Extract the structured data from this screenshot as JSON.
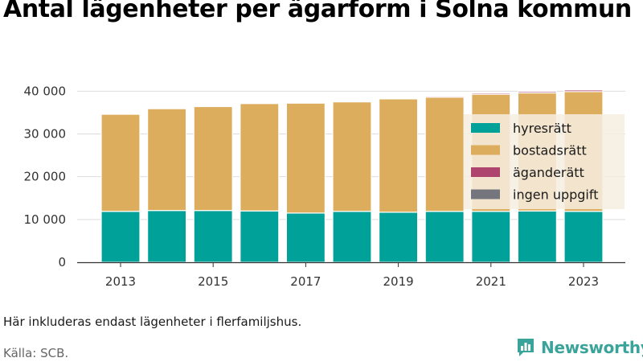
{
  "colors": {
    "hyresratt": "#00a199",
    "bostadsratt": "#dcad5c",
    "aganderatt": "#ad456f",
    "ingen_uppgift": "#75767d",
    "brand": "#3aa39a",
    "grid": "#dddddd",
    "legend_bg": "#f6ede0"
  },
  "note": "Här inkluderas endast lägenheter i flerfamiljshus.",
  "source": "Källa: SCB.",
  "brand": {
    "name": "Newsworthy",
    "icon": "bar-chart-logo-icon"
  },
  "chart_data": {
    "type": "bar",
    "stacked": true,
    "title": "Antal lägenheter per ägarform i Solna kommun",
    "xlabel": "",
    "ylabel": "",
    "categories": [
      "2013",
      "2014",
      "2015",
      "2016",
      "2017",
      "2018",
      "2019",
      "2020",
      "2021",
      "2022",
      "2023"
    ],
    "x_tick_labels": [
      "2013",
      "2015",
      "2017",
      "2019",
      "2021",
      "2023"
    ],
    "y_ticks": [
      0,
      10000,
      20000,
      30000,
      40000
    ],
    "y_tick_labels": [
      "0",
      "10 000",
      "20 000",
      "30 000",
      "40 000"
    ],
    "ylim": [
      0,
      43000
    ],
    "grid": true,
    "legend_position": "right",
    "series": [
      {
        "name": "hyresrätt",
        "color": "#00a199",
        "values": [
          11900,
          12100,
          12100,
          12000,
          11500,
          11900,
          11700,
          11900,
          11900,
          12000,
          11900
        ]
      },
      {
        "name": "bostadsrätt",
        "color": "#dcad5c",
        "values": [
          22700,
          23800,
          24300,
          25100,
          25700,
          25600,
          26500,
          26700,
          27400,
          27600,
          28000
        ]
      },
      {
        "name": "äganderätt",
        "color": "#ad456f",
        "values": [
          0,
          0,
          0,
          0,
          0,
          0,
          0,
          250,
          300,
          350,
          400
        ]
      },
      {
        "name": "ingen uppgift",
        "color": "#75767d",
        "values": [
          0,
          0,
          0,
          0,
          0,
          0,
          0,
          100,
          100,
          120,
          120
        ]
      }
    ]
  }
}
